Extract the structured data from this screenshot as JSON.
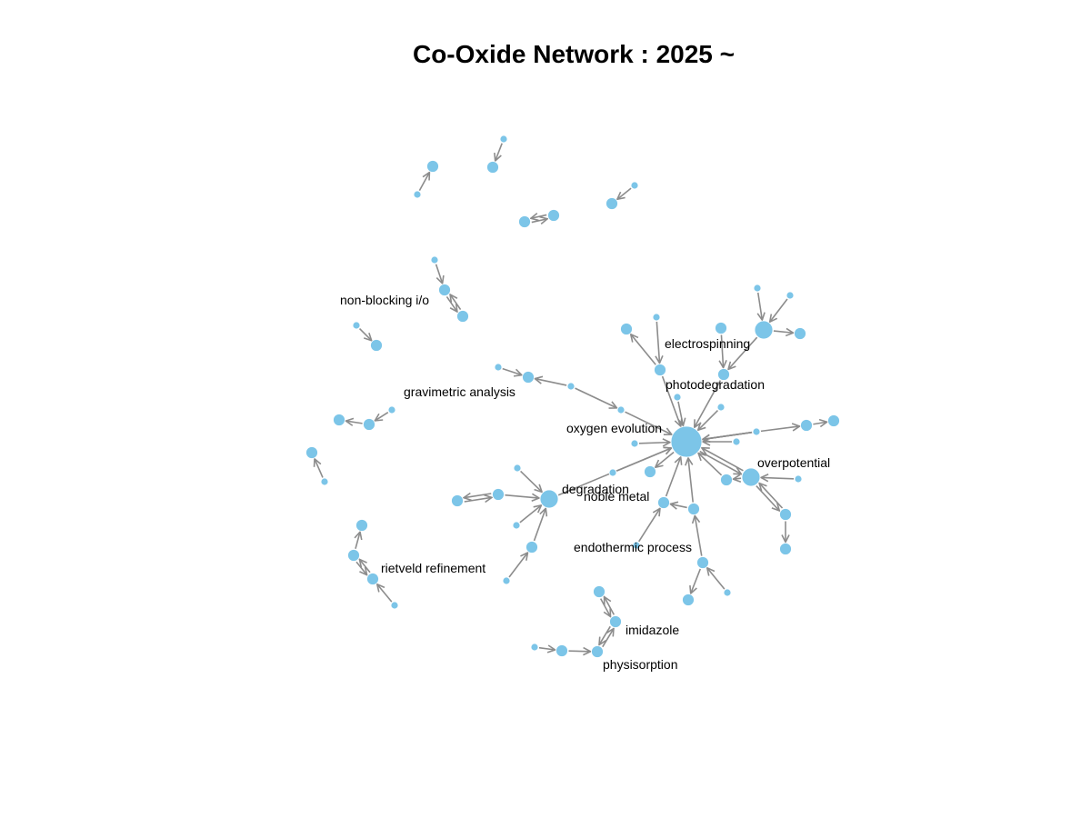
{
  "title": "Co-Oxide Network : 2025 ~",
  "colors": {
    "node": "#7cc5e8",
    "edge": "#8c8c8c",
    "label": "#000000"
  },
  "network": {
    "nodes": [
      {
        "id": "hub",
        "label": "",
        "size": "xl"
      },
      {
        "id": "gravimetric",
        "label": "gravimetric analysis",
        "size": "m"
      },
      {
        "id": "n_grav_leaf",
        "label": "",
        "size": "s"
      },
      {
        "id": "n_grav_mid",
        "label": "",
        "size": "s"
      },
      {
        "id": "oxygen",
        "label": "oxygen evolution",
        "size": "s"
      },
      {
        "id": "n_c1",
        "label": "",
        "size": "s"
      },
      {
        "id": "n_c2",
        "label": "",
        "size": "s"
      },
      {
        "id": "n_c3",
        "label": "",
        "size": "s"
      },
      {
        "id": "n_c4",
        "label": "",
        "size": "s"
      },
      {
        "id": "n_left_small",
        "label": "",
        "size": "s"
      },
      {
        "id": "n_hub_l2",
        "label": "",
        "size": "m"
      },
      {
        "id": "n_hub_l3",
        "label": "",
        "size": "s"
      },
      {
        "id": "n_a",
        "label": "",
        "size": "m"
      },
      {
        "id": "n_a2",
        "label": "",
        "size": "s"
      },
      {
        "id": "n_a3",
        "label": "",
        "size": "m"
      },
      {
        "id": "photo",
        "label": "photodegradation",
        "size": "m"
      },
      {
        "id": "electro",
        "label": "electrospinning",
        "size": "m"
      },
      {
        "id": "n_big",
        "label": "",
        "size": "l"
      },
      {
        "id": "n_big1",
        "label": "",
        "size": "s"
      },
      {
        "id": "n_big2",
        "label": "",
        "size": "s"
      },
      {
        "id": "n_big3",
        "label": "",
        "size": "m"
      },
      {
        "id": "n_r1",
        "label": "",
        "size": "s"
      },
      {
        "id": "n_r2",
        "label": "",
        "size": "m"
      },
      {
        "id": "n_r3",
        "label": "",
        "size": "m"
      },
      {
        "id": "overpotential",
        "label": "overpotential",
        "size": "l"
      },
      {
        "id": "n_op1",
        "label": "",
        "size": "s"
      },
      {
        "id": "n_op2",
        "label": "",
        "size": "m"
      },
      {
        "id": "n_op3",
        "label": "",
        "size": "m"
      },
      {
        "id": "n_op4",
        "label": "",
        "size": "m"
      },
      {
        "id": "n_op5",
        "label": "",
        "size": "s"
      },
      {
        "id": "noble",
        "label": "noble metal",
        "size": "m"
      },
      {
        "id": "endo",
        "label": "endothermic process",
        "size": "s"
      },
      {
        "id": "n_e1",
        "label": "",
        "size": "m"
      },
      {
        "id": "n_e2",
        "label": "",
        "size": "m"
      },
      {
        "id": "n_e3",
        "label": "",
        "size": "m"
      },
      {
        "id": "n_e4",
        "label": "",
        "size": "s"
      },
      {
        "id": "degradation",
        "label": "degradation",
        "size": "l"
      },
      {
        "id": "n_d1",
        "label": "",
        "size": "s"
      },
      {
        "id": "n_d2",
        "label": "",
        "size": "m"
      },
      {
        "id": "n_d3",
        "label": "",
        "size": "m"
      },
      {
        "id": "n_d4",
        "label": "",
        "size": "s"
      },
      {
        "id": "n_d5",
        "label": "",
        "size": "m"
      },
      {
        "id": "n_d6",
        "label": "",
        "size": "s"
      },
      {
        "id": "imidazole",
        "label": "imidazole",
        "size": "m"
      },
      {
        "id": "n_i1",
        "label": "",
        "size": "m"
      },
      {
        "id": "physisorption",
        "label": "physisorption",
        "size": "m"
      },
      {
        "id": "n_p1",
        "label": "",
        "size": "m"
      },
      {
        "id": "n_p2",
        "label": "",
        "size": "s"
      },
      {
        "id": "rietveld",
        "label": "rietveld refinement",
        "size": "m"
      },
      {
        "id": "n_rv1",
        "label": "",
        "size": "m"
      },
      {
        "id": "n_rv2",
        "label": "",
        "size": "m"
      },
      {
        "id": "n_rv3",
        "label": "",
        "size": "s"
      },
      {
        "id": "nonblocking",
        "label": "non-blocking i/o",
        "size": "m"
      },
      {
        "id": "n_nb1",
        "label": "",
        "size": "s"
      },
      {
        "id": "n_nb2",
        "label": "",
        "size": "m"
      },
      {
        "id": "n_t1a",
        "label": "",
        "size": "m"
      },
      {
        "id": "n_t1b",
        "label": "",
        "size": "s"
      },
      {
        "id": "n_t2a",
        "label": "",
        "size": "m"
      },
      {
        "id": "n_t2b",
        "label": "",
        "size": "s"
      },
      {
        "id": "n_t3a",
        "label": "",
        "size": "m"
      },
      {
        "id": "n_t3b",
        "label": "",
        "size": "m"
      },
      {
        "id": "n_t4a",
        "label": "",
        "size": "m"
      },
      {
        "id": "n_t4b",
        "label": "",
        "size": "s"
      },
      {
        "id": "n_l1a",
        "label": "",
        "size": "m"
      },
      {
        "id": "n_l1b",
        "label": "",
        "size": "s"
      },
      {
        "id": "n_l2a",
        "label": "",
        "size": "m"
      },
      {
        "id": "n_l2b",
        "label": "",
        "size": "m"
      },
      {
        "id": "n_l2c",
        "label": "",
        "size": "s"
      },
      {
        "id": "n_l3a",
        "label": "",
        "size": "m"
      },
      {
        "id": "n_l3b",
        "label": "",
        "size": "s"
      }
    ],
    "edges": [
      {
        "from": "n_grav_leaf",
        "to": "gravimetric"
      },
      {
        "from": "n_grav_mid",
        "to": "gravimetric"
      },
      {
        "from": "n_grav_mid",
        "to": "oxygen"
      },
      {
        "from": "oxygen",
        "to": "hub"
      },
      {
        "from": "n_c1",
        "to": "hub"
      },
      {
        "from": "n_c2",
        "to": "hub"
      },
      {
        "from": "n_c3",
        "to": "hub"
      },
      {
        "from": "n_c4",
        "to": "hub"
      },
      {
        "from": "n_left_small",
        "to": "hub"
      },
      {
        "from": "hub",
        "to": "n_hub_l2"
      },
      {
        "from": "n_hub_l3",
        "to": "hub"
      },
      {
        "from": "n_a2",
        "to": "n_a"
      },
      {
        "from": "n_a",
        "to": "n_a3"
      },
      {
        "from": "n_a",
        "to": "hub"
      },
      {
        "from": "photo",
        "to": "hub"
      },
      {
        "from": "electro",
        "to": "photo"
      },
      {
        "from": "n_big",
        "to": "photo"
      },
      {
        "from": "n_big1",
        "to": "n_big"
      },
      {
        "from": "n_big2",
        "to": "n_big"
      },
      {
        "from": "n_big",
        "to": "n_big3"
      },
      {
        "from": "n_r1",
        "to": "hub"
      },
      {
        "from": "n_r1",
        "to": "n_r2"
      },
      {
        "from": "n_r2",
        "to": "n_r3"
      },
      {
        "from": "overpotential",
        "to": "hub"
      },
      {
        "from": "hub",
        "to": "overpotential"
      },
      {
        "from": "n_op1",
        "to": "overpotential"
      },
      {
        "from": "n_op2",
        "to": "hub"
      },
      {
        "from": "overpotential",
        "to": "n_op2"
      },
      {
        "from": "overpotential",
        "to": "n_op3"
      },
      {
        "from": "n_op3",
        "to": "overpotential"
      },
      {
        "from": "n_op3",
        "to": "n_op4"
      },
      {
        "from": "n_op5",
        "to": "hub"
      },
      {
        "from": "noble",
        "to": "hub"
      },
      {
        "from": "endo",
        "to": "noble"
      },
      {
        "from": "n_e1",
        "to": "noble"
      },
      {
        "from": "n_e1",
        "to": "hub"
      },
      {
        "from": "n_e2",
        "to": "n_e1"
      },
      {
        "from": "n_e2",
        "to": "n_e3"
      },
      {
        "from": "n_e4",
        "to": "n_e2"
      },
      {
        "from": "degradation",
        "to": "hub"
      },
      {
        "from": "n_d1",
        "to": "degradation"
      },
      {
        "from": "n_d2",
        "to": "degradation"
      },
      {
        "from": "n_d2",
        "to": "n_d3"
      },
      {
        "from": "n_d3",
        "to": "n_d2"
      },
      {
        "from": "n_d4",
        "to": "degradation"
      },
      {
        "from": "n_d5",
        "to": "degradation"
      },
      {
        "from": "n_d6",
        "to": "n_d5"
      },
      {
        "from": "n_i1",
        "to": "imidazole"
      },
      {
        "from": "imidazole",
        "to": "n_i1"
      },
      {
        "from": "physisorption",
        "to": "imidazole"
      },
      {
        "from": "imidazole",
        "to": "physisorption"
      },
      {
        "from": "n_p1",
        "to": "physisorption"
      },
      {
        "from": "n_p2",
        "to": "n_p1"
      },
      {
        "from": "n_rv1",
        "to": "n_rv2"
      },
      {
        "from": "n_rv1",
        "to": "rietveld"
      },
      {
        "from": "rietveld",
        "to": "n_rv1"
      },
      {
        "from": "n_rv3",
        "to": "rietveld"
      },
      {
        "from": "n_nb1",
        "to": "nonblocking"
      },
      {
        "from": "nonblocking",
        "to": "n_nb2"
      },
      {
        "from": "n_nb2",
        "to": "nonblocking"
      },
      {
        "from": "n_t1b",
        "to": "n_t1a"
      },
      {
        "from": "n_t2b",
        "to": "n_t2a"
      },
      {
        "from": "n_t3a",
        "to": "n_t3b"
      },
      {
        "from": "n_t3b",
        "to": "n_t3a"
      },
      {
        "from": "n_t4b",
        "to": "n_t4a"
      },
      {
        "from": "n_l1b",
        "to": "n_l1a"
      },
      {
        "from": "n_l2c",
        "to": "n_l2b"
      },
      {
        "from": "n_l2b",
        "to": "n_l2a"
      },
      {
        "from": "n_l3b",
        "to": "n_l3a"
      }
    ]
  }
}
